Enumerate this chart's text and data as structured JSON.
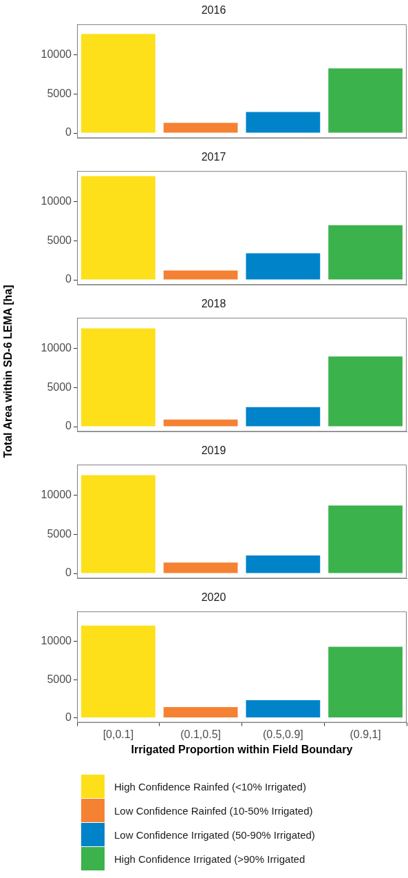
{
  "chart_data": [
    {
      "type": "bar",
      "title": "2016",
      "series": [
        {
          "color": "#fde01a",
          "values": [
            12700,
            null,
            null,
            null
          ]
        },
        {
          "color": "#f58233",
          "values": [
            null,
            1300,
            null,
            null
          ]
        },
        {
          "color": "#0083c8",
          "values": [
            null,
            null,
            2700,
            null
          ]
        },
        {
          "color": "#3cb24d",
          "values": [
            null,
            null,
            null,
            8300
          ]
        }
      ],
      "ylim": [
        -650,
        13950
      ],
      "yticks": [
        0,
        5000,
        10000
      ],
      "tick_labels": "y"
    },
    {
      "type": "bar",
      "title": "2017",
      "series": [
        {
          "color": "#fde01a",
          "values": [
            13300,
            null,
            null,
            null
          ]
        },
        {
          "color": "#f58233",
          "values": [
            null,
            1200,
            null,
            null
          ]
        },
        {
          "color": "#0083c8",
          "values": [
            null,
            null,
            3400,
            null
          ]
        },
        {
          "color": "#3cb24d",
          "values": [
            null,
            null,
            null,
            7000
          ]
        }
      ],
      "ylim": [
        -650,
        13950
      ],
      "yticks": [
        0,
        5000,
        10000
      ],
      "tick_labels": "y"
    },
    {
      "type": "bar",
      "title": "2018",
      "ylabel": "Total Area within SD-6 LEMA [ha]",
      "series": [
        {
          "color": "#fde01a",
          "values": [
            12600,
            null,
            null,
            null
          ]
        },
        {
          "color": "#f58233",
          "values": [
            null,
            900,
            null,
            null
          ]
        },
        {
          "color": "#0083c8",
          "values": [
            null,
            null,
            2500,
            null
          ]
        },
        {
          "color": "#3cb24d",
          "values": [
            null,
            null,
            null,
            9000
          ]
        }
      ],
      "ylim": [
        -650,
        13950
      ],
      "yticks": [
        0,
        5000,
        10000
      ],
      "tick_labels": "y"
    },
    {
      "type": "bar",
      "title": "2019",
      "series": [
        {
          "color": "#fde01a",
          "values": [
            12600,
            null,
            null,
            null
          ]
        },
        {
          "color": "#f58233",
          "values": [
            null,
            1400,
            null,
            null
          ]
        },
        {
          "color": "#0083c8",
          "values": [
            null,
            null,
            2300,
            null
          ]
        },
        {
          "color": "#3cb24d",
          "values": [
            null,
            null,
            null,
            8700
          ]
        }
      ],
      "ylim": [
        -650,
        13950
      ],
      "yticks": [
        0,
        5000,
        10000
      ],
      "tick_labels": "y"
    },
    {
      "type": "bar",
      "title": "2020",
      "xlabel": "Irrigated Proportion within Field Boundary",
      "categories": [
        "[0,0.1]",
        "(0.1,0.5]",
        "(0.5,0.9]",
        "(0.9,1]"
      ],
      "series": [
        {
          "name": "High Confidence Rainfed (<10% Irrigated)",
          "color": "#fde01a",
          "values": [
            12100,
            null,
            null,
            null
          ]
        },
        {
          "name": "Low Confidence Rainfed (10-50% Irrigated)",
          "color": "#f58233",
          "values": [
            null,
            1400,
            null,
            null
          ]
        },
        {
          "name": "Low Confidence Irrigated (50-90% Irrigated)",
          "color": "#0083c8",
          "values": [
            null,
            null,
            2300,
            null
          ]
        },
        {
          "name": "High Confidence Irrigated (>90% Irrigated",
          "color": "#3cb24d",
          "values": [
            null,
            null,
            null,
            9300
          ]
        }
      ],
      "ylim": [
        -650,
        13950
      ],
      "yticks": [
        0,
        5000,
        10000
      ],
      "legend": "bottom"
    }
  ]
}
